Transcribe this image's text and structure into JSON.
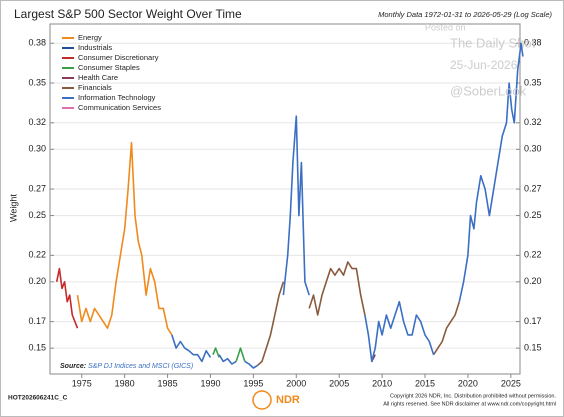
{
  "chart_data": {
    "type": "line",
    "title": "Largest S&P 500 Sector Weight Over Time",
    "subtitle": "Monthly Data 1972-01-31 to 2026-05-29 (Log Scale)",
    "y_label": "Weight",
    "source_label": "Source:",
    "source": "S&P DJ Indices and MSCI (GICS)",
    "code": "HOT202606241C_C",
    "copyright": [
      "Copyright 2026 NDR, Inc. Distribution prohibited without permission.",
      "All rights reserved. See NDR disclaimer at www.ndr.com/copyright.html"
    ],
    "logo": "NDR",
    "watermark": [
      "Posted on",
      "The Daily Shot",
      "25-Jun-2026",
      "@SoberLook"
    ],
    "xlim": [
      1972,
      2027
    ],
    "xticks": [
      1975,
      1980,
      1985,
      1990,
      1995,
      2000,
      2005,
      2010,
      2015,
      2020,
      2025
    ],
    "ylim": [
      0.135,
      0.39
    ],
    "yticks": [
      0.15,
      0.17,
      {
        "value": 0.2,
        "label": "0.20"
      },
      0.22,
      0.25,
      0.27,
      {
        "value": 0.3,
        "label": "0.30"
      },
      0.32,
      0.35,
      0.38
    ],
    "series": [
      {
        "name": "Energy",
        "color": "#f08a1c",
        "x": [
          1974.5,
          1975,
          1975.5,
          1976,
          1976.5,
          1977,
          1977.5,
          1978,
          1978.5,
          1979,
          1979.5,
          1980,
          1980.4,
          1980.8,
          1981.2,
          1981.6,
          1982,
          1982.5,
          1983,
          1983.5,
          1984,
          1984.5,
          1985,
          1985.5
        ],
        "values": [
          0.19,
          0.17,
          0.18,
          0.17,
          0.18,
          0.175,
          0.17,
          0.165,
          0.175,
          0.2,
          0.22,
          0.24,
          0.27,
          0.305,
          0.25,
          0.23,
          0.22,
          0.19,
          0.21,
          0.2,
          0.18,
          0.18,
          0.165,
          0.16
        ]
      },
      {
        "name": "Industrials",
        "color": "#1f4e9c",
        "x": [],
        "values": []
      },
      {
        "name": "Consumer Discretionary",
        "color": "#c62a2a",
        "x": [
          1972.08,
          1972.4,
          1972.7,
          1973,
          1973.3,
          1973.6,
          1973.9,
          1974.2,
          1974.5
        ],
        "values": [
          0.2,
          0.21,
          0.195,
          0.2,
          0.185,
          0.19,
          0.175,
          0.17,
          0.165
        ]
      },
      {
        "name": "Consumer Staples",
        "color": "#3aa14a",
        "x": [
          1990.3,
          1990.6,
          1991,
          1992,
          1993,
          1993.5,
          1994
        ],
        "values": [
          0.145,
          0.15,
          0.143,
          null,
          0.14,
          0.15,
          0.14
        ]
      },
      {
        "name": "Health Care",
        "color": "#8a3b5c",
        "x": [
          2008.8,
          2009.2
        ],
        "values": [
          0.14,
          0.145
        ]
      },
      {
        "name": "Financials",
        "color": "#8b5a3c",
        "x": [
          1995.5,
          1996,
          1996.5,
          1997,
          1997.5,
          1998,
          1998.5,
          2000,
          2001.5,
          2002,
          2002.5,
          2003,
          2003.5,
          2004,
          2004.5,
          2005,
          2005.5,
          2006,
          2006.5,
          2007,
          2007.5,
          2008,
          2012,
          2016,
          2016.5,
          2017,
          2017.5,
          2018,
          2018.5,
          2019
        ],
        "values": [
          0.137,
          0.14,
          0.15,
          0.16,
          0.175,
          0.19,
          0.2,
          null,
          0.18,
          0.19,
          0.175,
          0.19,
          0.2,
          0.21,
          0.205,
          0.21,
          0.205,
          0.215,
          0.21,
          0.21,
          0.19,
          0.175,
          null,
          0.145,
          0.15,
          0.155,
          0.165,
          0.17,
          0.175,
          0.185
        ]
      },
      {
        "name": "Information Technology",
        "color": "#3b6fc3",
        "x": [
          1985.5,
          1986,
          1986.5,
          1987,
          1987.5,
          1988,
          1988.5,
          1989,
          1989.5,
          1990,
          1990.2,
          1991,
          1991.5,
          1992,
          1992.5,
          1993,
          1993.5,
          1994,
          1994.5,
          1995,
          1995.5,
          1997,
          1998.5,
          1999,
          1999.3,
          1999.6,
          2000,
          2000.3,
          2000.6,
          2001,
          2001.5,
          2005,
          2008,
          2008.4,
          2008.8,
          2009.2,
          2009.6,
          2010,
          2010.5,
          2011,
          2011.5,
          2012,
          2012.5,
          2013,
          2013.5,
          2014,
          2014.5,
          2015,
          2015.5,
          2016,
          2017,
          2019,
          2019.5,
          2020,
          2020.3,
          2020.7,
          2021,
          2021.5,
          2022,
          2022.5,
          2023,
          2023.5,
          2024,
          2024.5,
          2024.8,
          2025.1,
          2025.4,
          2025.8,
          2026.2,
          2026.4
        ],
        "values": [
          0.16,
          0.15,
          0.155,
          0.15,
          0.148,
          0.145,
          0.145,
          0.14,
          0.148,
          0.143,
          null,
          0.145,
          0.14,
          0.142,
          0.138,
          0.14,
          null,
          0.14,
          0.138,
          0.135,
          0.137,
          null,
          0.19,
          0.22,
          0.25,
          0.29,
          0.325,
          0.25,
          0.29,
          0.2,
          0.19,
          null,
          0.175,
          0.16,
          0.14,
          0.15,
          0.17,
          0.16,
          0.175,
          0.165,
          0.175,
          0.185,
          0.17,
          0.16,
          0.16,
          0.175,
          0.17,
          0.16,
          0.155,
          0.145,
          null,
          0.185,
          0.2,
          0.22,
          0.25,
          0.24,
          0.26,
          0.28,
          0.27,
          0.25,
          0.27,
          0.29,
          0.31,
          0.32,
          0.35,
          0.33,
          0.32,
          0.36,
          0.38,
          0.37
        ]
      },
      {
        "name": "Communication Services",
        "color": "#e06fb0",
        "x": [],
        "values": []
      }
    ]
  }
}
